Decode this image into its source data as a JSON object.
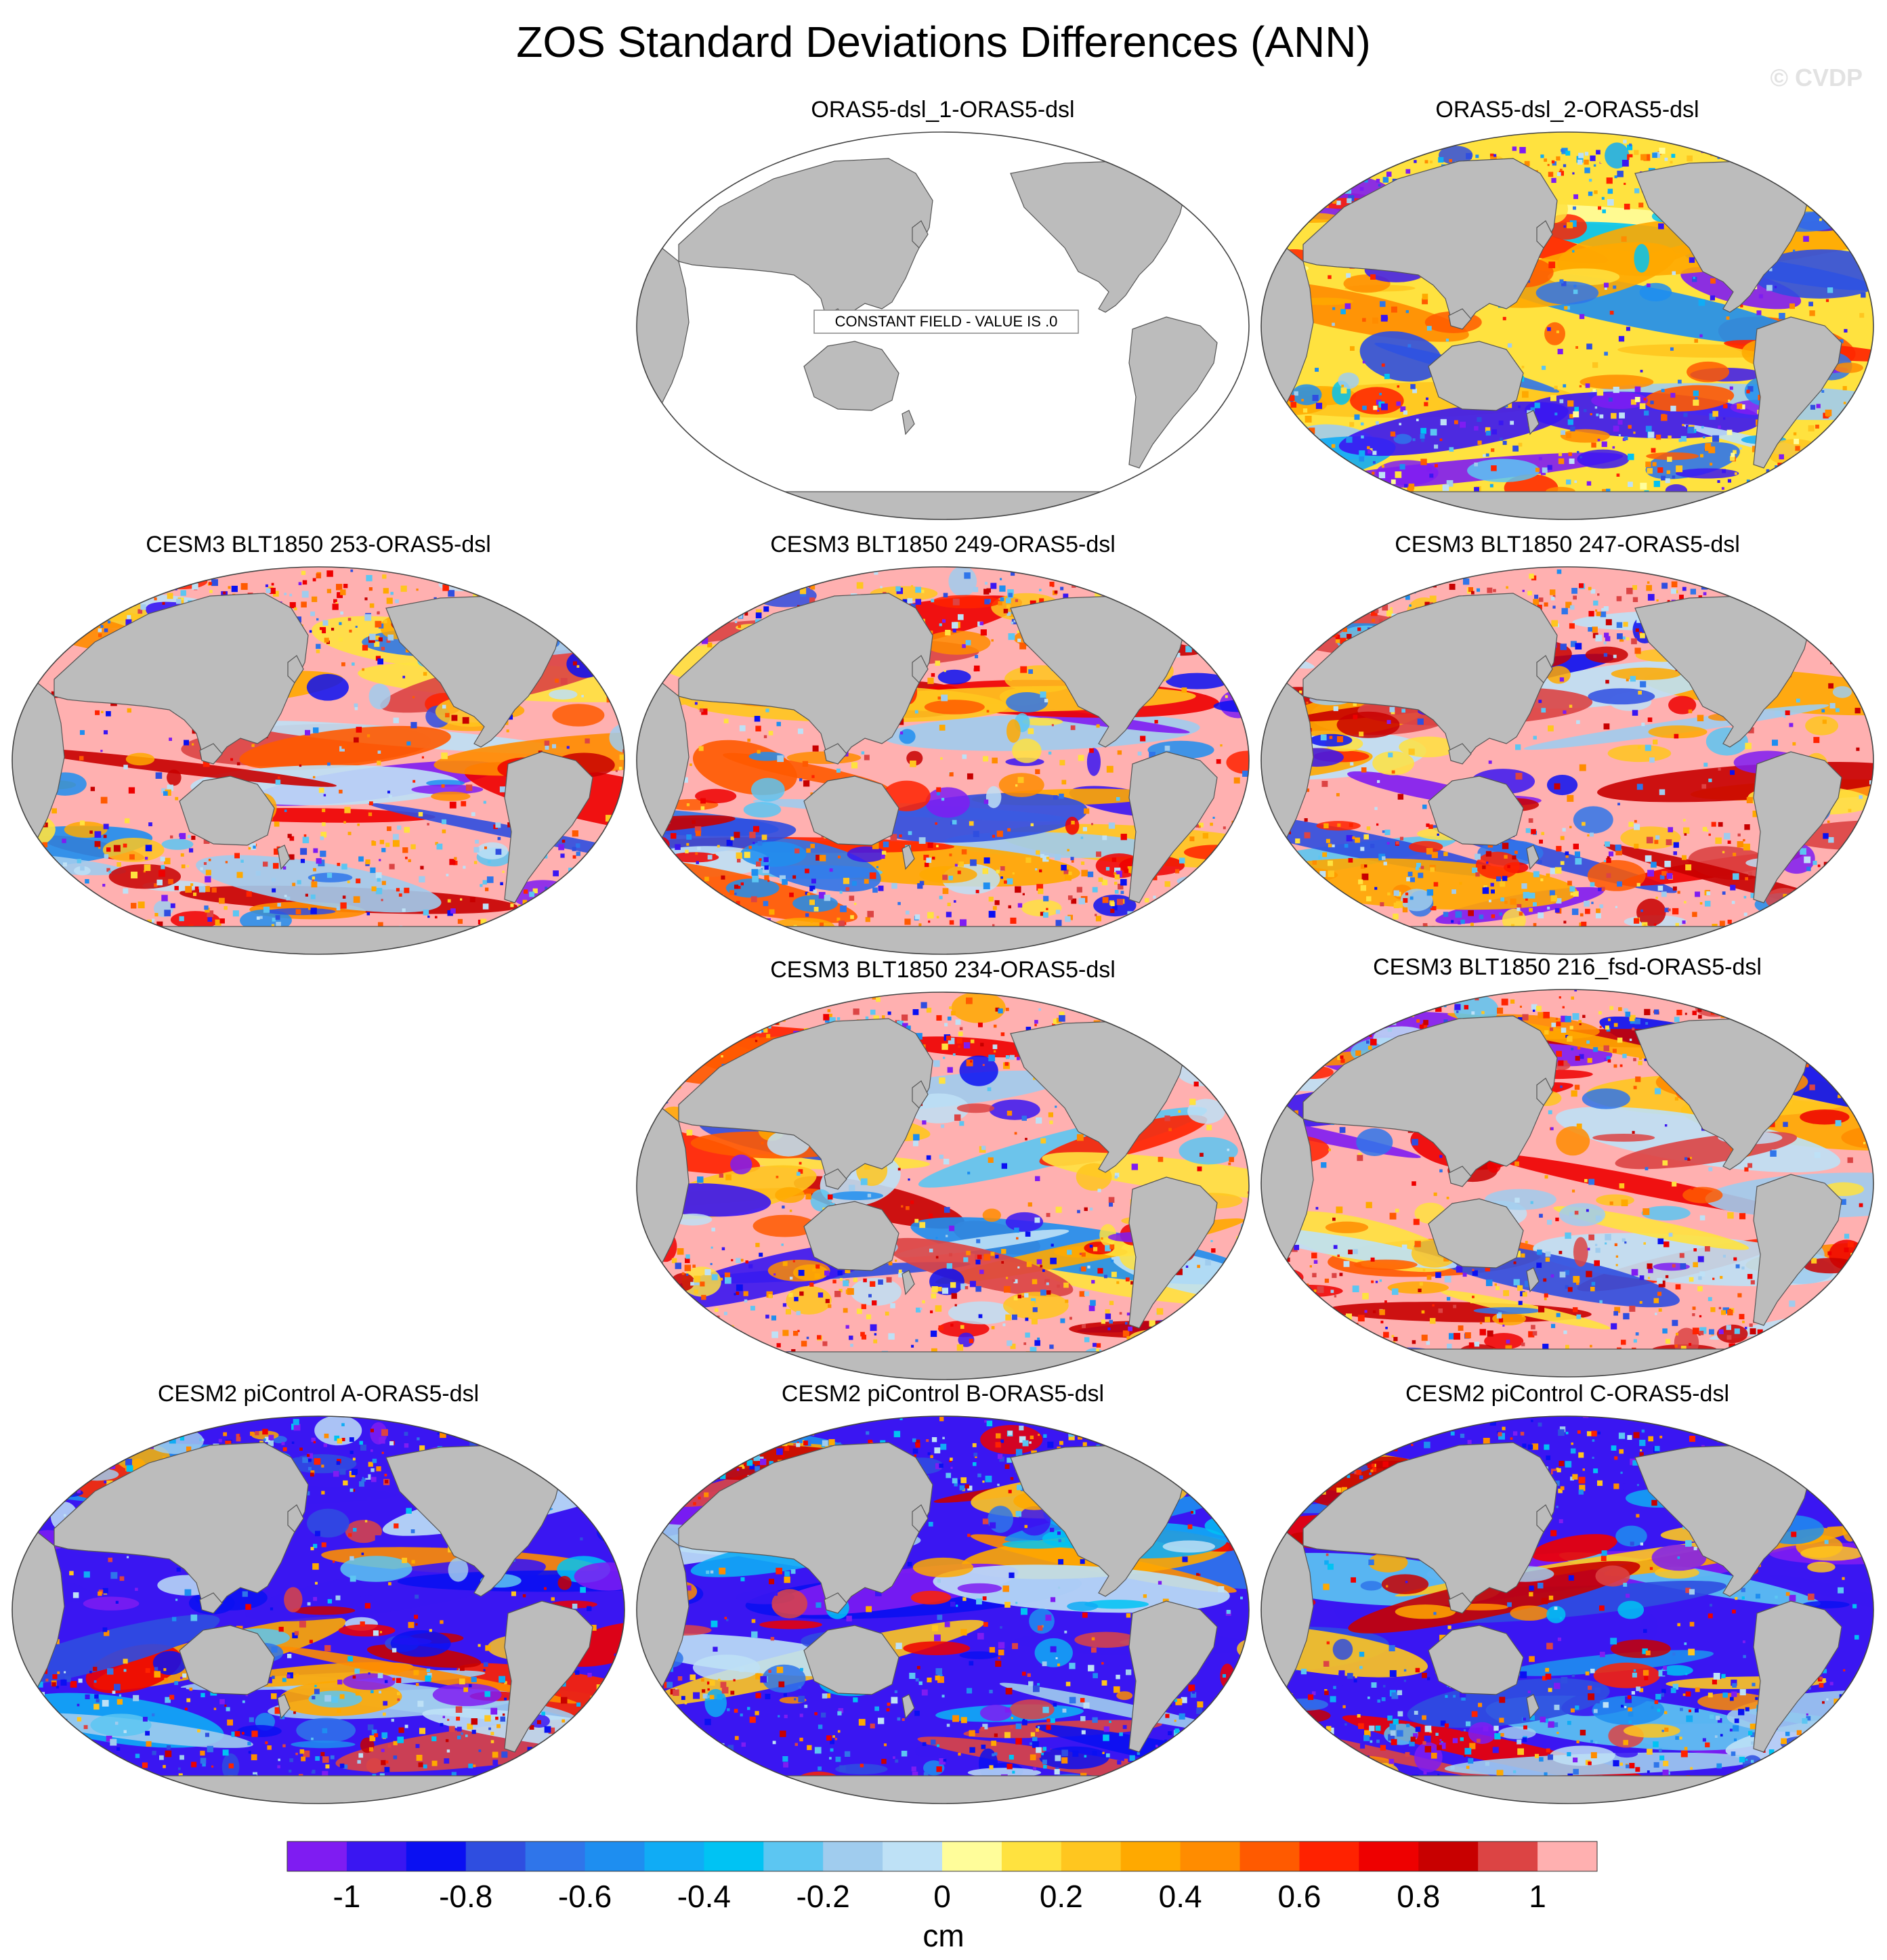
{
  "title": "ZOS Standard Deviations Differences (ANN)",
  "watermark": "© CVDP",
  "colors": {
    "land": "#bcbcbc",
    "coast": "#555555",
    "constant_box_bg": "#ffffff",
    "palette": [
      "#7f1cf2",
      "#3a16f2",
      "#0a10f2",
      "#2f4ee0",
      "#2f75ea",
      "#1e8ef0",
      "#10acf5",
      "#00c3f3",
      "#5cc6f2",
      "#a0ccee",
      "#bee1f6",
      "#fffd9a",
      "#ffe23f",
      "#ffc61f",
      "#ffa900",
      "#ff8c00",
      "#ff5a00",
      "#ff2200",
      "#ee0000",
      "#c80000",
      "#dc4444",
      "#ffb0b0"
    ]
  },
  "panels": [
    {
      "id": "p1",
      "title": "ORAS5-dsl_1-ORAS5-dsl",
      "style": "constant",
      "note": "CONSTANT FIELD - VALUE IS .0"
    },
    {
      "id": "p2",
      "title": "ORAS5-dsl_2-ORAS5-dsl",
      "style": "mixed"
    },
    {
      "id": "p3",
      "title": "CESM3 BLT1850 253-ORAS5-dsl",
      "style": "pink"
    },
    {
      "id": "p4",
      "title": "CESM3 BLT1850 249-ORAS5-dsl",
      "style": "pink"
    },
    {
      "id": "p5",
      "title": "CESM3 BLT1850 247-ORAS5-dsl",
      "style": "pink"
    },
    {
      "id": "p6",
      "title": "CESM3 BLT1850 234-ORAS5-dsl",
      "style": "pink"
    },
    {
      "id": "p7",
      "title": "CESM3 BLT1850 216_fsd-ORAS5-dsl",
      "style": "pink"
    },
    {
      "id": "p8",
      "title": "CESM2 piControl A-ORAS5-dsl",
      "style": "blue"
    },
    {
      "id": "p9",
      "title": "CESM2 piControl B-ORAS5-dsl",
      "style": "blue"
    },
    {
      "id": "p10",
      "title": "CESM2 piControl C-ORAS5-dsl",
      "style": "blue"
    }
  ],
  "colorbar": {
    "labels": [
      "-1",
      "-0.8",
      "-0.6",
      "-0.4",
      "-0.2",
      "0",
      "0.2",
      "0.4",
      "0.6",
      "0.8",
      "1"
    ],
    "units": "cm"
  }
}
